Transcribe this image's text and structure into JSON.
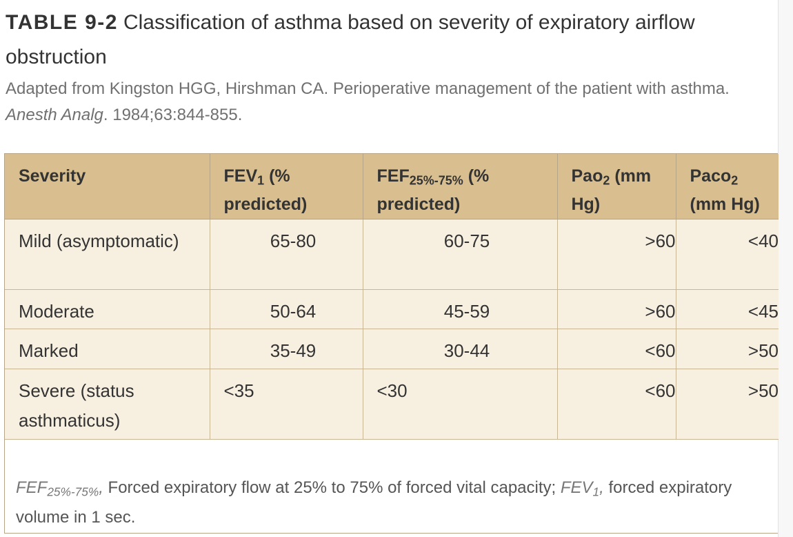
{
  "caption": {
    "label": "TABLE 9-2",
    "title": "Classification of asthma based on severity of expiratory airflow obstruction",
    "source_prefix": "Adapted from Kingston HGG, Hirshman CA. Perioperative management of the patient with asthma.",
    "source_journal": "Anesth Analg",
    "source_suffix": ". 1984;63:844-855."
  },
  "table": {
    "headers": {
      "severity": "Severity",
      "fev_base": "FEV",
      "fev_sub": "1",
      "fev_tail": " (% predicted)",
      "fef_base": "FEF",
      "fef_sub": "25%-75%",
      "fef_tail": " (% predicted)",
      "pao_base": "Pao",
      "pao_sub": "2",
      "pao_tail": " (mm Hg)",
      "paco_base": "Paco",
      "paco_sub": "2",
      "paco_tail": " (mm Hg)"
    },
    "rows": [
      {
        "severity": "Mild (asymptomatic)",
        "fev1": "65-80",
        "fef": "60-75",
        "pao2": ">60",
        "paco2": "<40"
      },
      {
        "severity": "Moderate",
        "fev1": "50-64",
        "fef": "45-59",
        "pao2": ">60",
        "paco2": "<45"
      },
      {
        "severity": "Marked",
        "fev1": "35-49",
        "fef": "30-44",
        "pao2": "<60",
        "paco2": ">50"
      },
      {
        "severity": "Severe (status asthmaticus)",
        "fev1": "<35",
        "fef": "<30",
        "pao2": "<60",
        "paco2": ">50"
      }
    ]
  },
  "footnote": {
    "abbr1_base": "FEF",
    "abbr1_sub": "25%-75%",
    "abbr1_comma": ",",
    "def1": " Forced expiratory flow at 25% to 75% of forced vital capacity; ",
    "abbr2_base": "FEV",
    "abbr2_sub": "1",
    "abbr2_comma": ",",
    "def2": " forced expiratory volume in 1 sec."
  }
}
